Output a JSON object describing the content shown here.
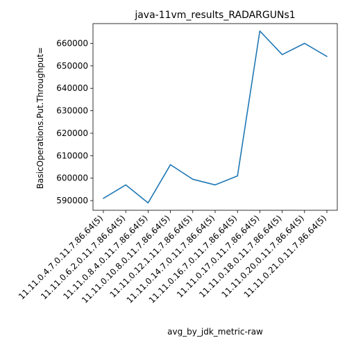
{
  "chart_data": {
    "type": "line",
    "title": "java-11vm_results_RADARGUNs1",
    "xlabel": "avg_by_jdk_metric-raw",
    "ylabel": "BasicOperations.Put.Throughput=",
    "categories": [
      "11.11.0.4.7.0.11.7.86.64(5)",
      "11.11.0.6.2.0.11.7.86.64(5)",
      "11.11.0.8.4.0.11.7.86.64(5)",
      "11.11.0.10.8.0.11.7.86.64(5)",
      "11.11.0.12.1.11.7.86.64(5)",
      "11.11.0.14.7.0.11.7.86.64(5)",
      "11.11.0.16.7.0.11.7.86.64(5)",
      "11.11.0.17.0.11.7.86.64(5)",
      "11.11.0.18.0.11.7.86.64(5)",
      "11.11.0.20.0.11.7.86.64(5)",
      "11.11.0.21.0.11.7.86.64(5)"
    ],
    "series": [
      {
        "values": [
          591000,
          597000,
          589000,
          606000,
          599500,
          597000,
          601000,
          665500,
          655000,
          660000,
          654200
        ],
        "color": "#1f77b4"
      }
    ],
    "yticks": [
      590000,
      600000,
      610000,
      620000,
      630000,
      640000,
      650000,
      660000
    ],
    "ytick_labels": [
      "590000",
      "600000",
      "610000",
      "620000",
      "630000",
      "640000",
      "650000",
      "660000"
    ],
    "ylim": [
      585700,
      668800
    ],
    "grid": false,
    "legend": "none"
  }
}
